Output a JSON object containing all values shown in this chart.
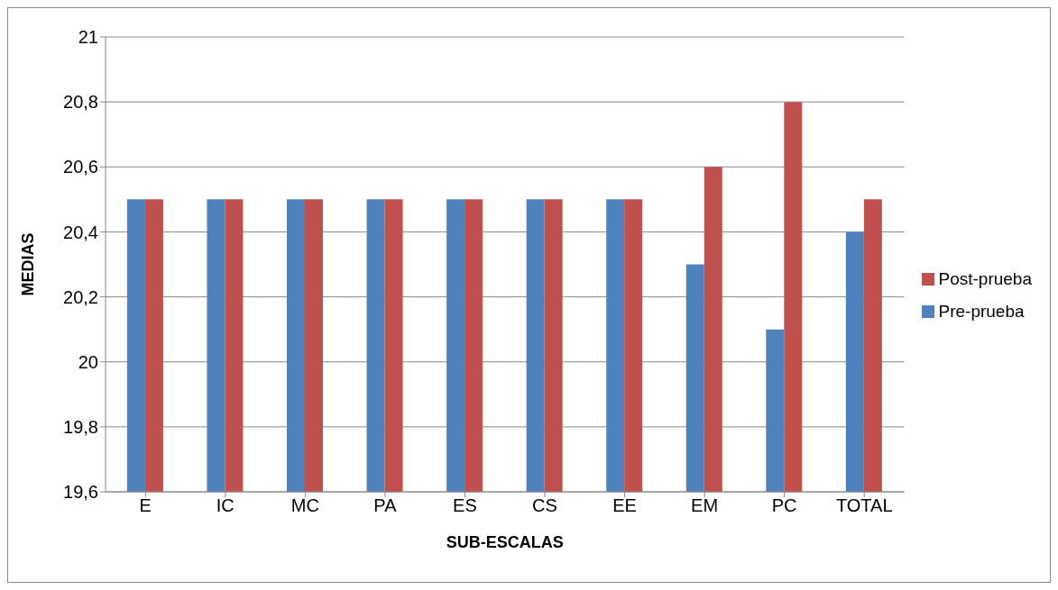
{
  "chart_data": {
    "type": "bar",
    "xlabel": "SUB-ESCALAS",
    "ylabel": "MEDIAS",
    "categories": [
      "E",
      "IC",
      "MC",
      "PA",
      "ES",
      "CS",
      "EE",
      "EM",
      "PC",
      "TOTAL"
    ],
    "series": [
      {
        "name": "Pre-prueba",
        "color": "#4f81bd",
        "values": [
          20.5,
          20.5,
          20.5,
          20.5,
          20.5,
          20.5,
          20.5,
          20.3,
          20.1,
          20.4
        ]
      },
      {
        "name": "Post-prueba",
        "color": "#c0504d",
        "values": [
          20.5,
          20.5,
          20.5,
          20.5,
          20.5,
          20.5,
          20.5,
          20.6,
          20.8,
          20.5
        ]
      }
    ],
    "ylim": [
      19.6,
      21
    ],
    "yticks": [
      {
        "value": 19.6,
        "label": "19,6"
      },
      {
        "value": 19.8,
        "label": "19,8"
      },
      20,
      {
        "value": 20.2,
        "label": "20,2"
      },
      {
        "value": 20.4,
        "label": "20,4"
      },
      {
        "value": 20.6,
        "label": "20,6"
      },
      {
        "value": 20.8,
        "label": "20,8"
      },
      21
    ],
    "grid": "y",
    "legend": "right"
  }
}
